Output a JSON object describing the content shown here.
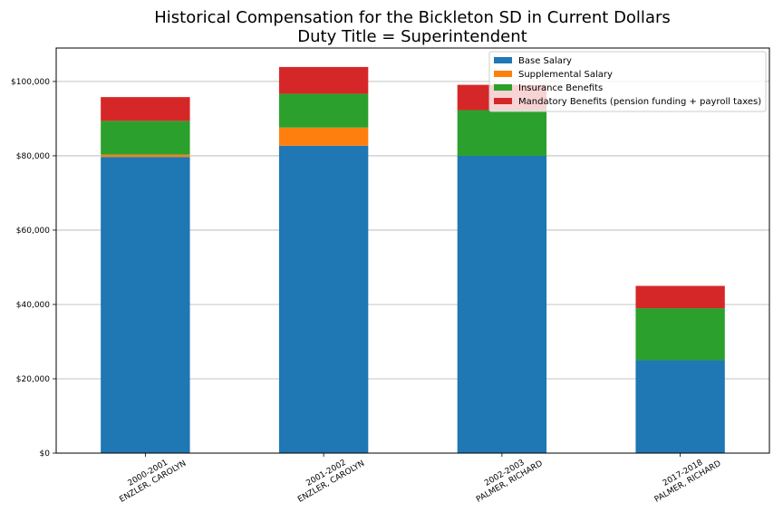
{
  "chart_data": {
    "type": "bar",
    "stacked": true,
    "title": "Historical Compensation for the Bickleton SD in Current Dollars",
    "subtitle": "Duty Title = Superintendent",
    "xlabel": "",
    "ylabel": "",
    "ylim": [
      0,
      109000
    ],
    "yticks": [
      {
        "value": 0,
        "label": "$0"
      },
      {
        "value": 20000,
        "label": "$20,000"
      },
      {
        "value": 40000,
        "label": "$40,000"
      },
      {
        "value": 60000,
        "label": "$60,000"
      },
      {
        "value": 80000,
        "label": "$80,000"
      },
      {
        "value": 100000,
        "label": "$100,000"
      }
    ],
    "grid": "horizontal",
    "legend_position": "top-right",
    "categories": [
      {
        "year": "2000-2001",
        "name": "ENZLER, CAROLYN"
      },
      {
        "year": "2001-2002",
        "name": "ENZLER, CAROLYN"
      },
      {
        "year": "2002-2003",
        "name": "PALMER, RICHARD"
      },
      {
        "year": "2017-2018",
        "name": "PALMER, RICHARD"
      }
    ],
    "series": [
      {
        "name": "Base Salary",
        "color": "#1f77b4",
        "values": [
          79700,
          82700,
          80000,
          25000
        ]
      },
      {
        "name": "Supplemental Salary",
        "color": "#ff7f0e",
        "values": [
          600,
          4900,
          0,
          0
        ]
      },
      {
        "name": "Insurance Benefits",
        "color": "#2ca02c",
        "values": [
          9100,
          9100,
          12300,
          14000
        ]
      },
      {
        "name": "Mandatory Benefits (pension funding + payroll taxes)",
        "color": "#d62728",
        "values": [
          6400,
          7200,
          6800,
          6000
        ]
      }
    ]
  }
}
